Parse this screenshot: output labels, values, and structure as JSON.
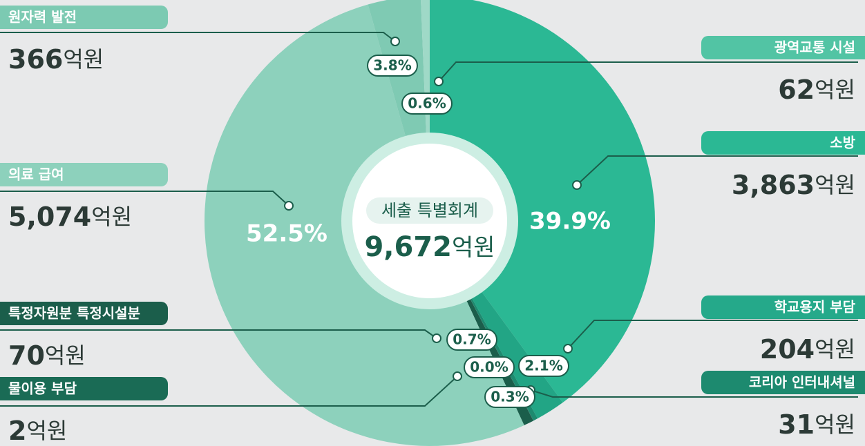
{
  "chart_data": {
    "type": "pie",
    "center_label": "세출 특별회계",
    "total": 9672,
    "total_label": "9,672",
    "unit": "억원",
    "categories": [
      "소방",
      "학교용지 부담",
      "코리아 인터내셔널",
      "물이용 부담",
      "특정자원분 특정시설분",
      "의료 급여",
      "원자력 발전",
      "광역교통 시설"
    ],
    "values": [
      3863,
      204,
      31,
      2,
      70,
      5074,
      366,
      62
    ],
    "value_labels": [
      "3,863",
      "204",
      "31",
      "2",
      "70",
      "5,074",
      "366",
      "62"
    ],
    "percents": [
      39.9,
      2.1,
      0.3,
      0.0,
      0.7,
      52.5,
      3.8,
      0.6
    ],
    "percent_labels": [
      "39.9%",
      "2.1%",
      "0.3%",
      "0.0%",
      "0.7%",
      "52.5%",
      "3.8%",
      "0.6%"
    ],
    "colors": [
      "#2bb894",
      "#22a585",
      "#1d8a6f",
      "#176b56",
      "#1b5e4b",
      "#8dd1bc",
      "#7fcab3",
      "#9fd9c7"
    ],
    "label_colors": [
      "#2bb894",
      "#25a98a",
      "#1d8a6f",
      "#1a6b55",
      "#1b5e4b",
      "#8dd1bc",
      "#7ccab2",
      "#52c4a4"
    ]
  }
}
